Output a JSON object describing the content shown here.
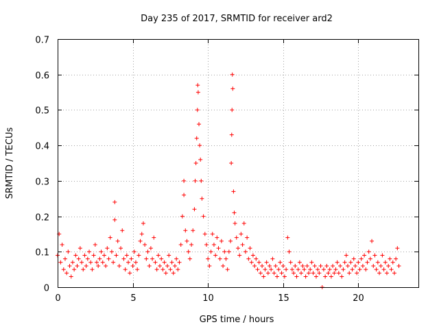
{
  "chart_data": {
    "type": "scatter",
    "title": "Day 235 of 2017, SRMTID for receiver ard2",
    "xlabel": "GPS time / hours",
    "ylabel": "SRMTID / TECUs",
    "xlim": [
      0,
      24
    ],
    "ylim": [
      0,
      0.7
    ],
    "xticks": [
      0,
      5,
      10,
      15,
      20
    ],
    "yticks": [
      0,
      0.1,
      0.2,
      0.3,
      0.4,
      0.5,
      0.6,
      0.7
    ],
    "ytick_labels": [
      "0",
      "0.1",
      "0.2",
      "0.3",
      "0.4",
      "0.5",
      "0.6",
      "0.7"
    ],
    "grid": true,
    "marker": "+",
    "color": "#ff0000",
    "series": [
      {
        "name": "SRMTID",
        "points": [
          [
            0.0,
            0.09
          ],
          [
            0.1,
            0.15
          ],
          [
            0.2,
            0.07
          ],
          [
            0.3,
            0.12
          ],
          [
            0.4,
            0.05
          ],
          [
            0.5,
            0.08
          ],
          [
            0.6,
            0.04
          ],
          [
            0.7,
            0.1
          ],
          [
            0.8,
            0.06
          ],
          [
            0.9,
            0.03
          ],
          [
            1.0,
            0.07
          ],
          [
            1.1,
            0.05
          ],
          [
            1.2,
            0.09
          ],
          [
            1.3,
            0.06
          ],
          [
            1.4,
            0.08
          ],
          [
            1.5,
            0.11
          ],
          [
            1.6,
            0.07
          ],
          [
            1.7,
            0.05
          ],
          [
            1.8,
            0.09
          ],
          [
            1.9,
            0.06
          ],
          [
            2.0,
            0.08
          ],
          [
            2.1,
            0.1
          ],
          [
            2.2,
            0.07
          ],
          [
            2.3,
            0.05
          ],
          [
            2.4,
            0.09
          ],
          [
            2.5,
            0.12
          ],
          [
            2.6,
            0.07
          ],
          [
            2.7,
            0.06
          ],
          [
            2.8,
            0.08
          ],
          [
            2.9,
            0.1
          ],
          [
            3.0,
            0.07
          ],
          [
            3.1,
            0.09
          ],
          [
            3.2,
            0.06
          ],
          [
            3.3,
            0.11
          ],
          [
            3.4,
            0.08
          ],
          [
            3.5,
            0.14
          ],
          [
            3.6,
            0.1
          ],
          [
            3.7,
            0.07
          ],
          [
            3.8,
            0.24
          ],
          [
            3.8,
            0.19
          ],
          [
            3.9,
            0.09
          ],
          [
            4.0,
            0.13
          ],
          [
            4.1,
            0.06
          ],
          [
            4.2,
            0.11
          ],
          [
            4.3,
            0.16
          ],
          [
            4.4,
            0.08
          ],
          [
            4.5,
            0.05
          ],
          [
            4.6,
            0.09
          ],
          [
            4.7,
            0.07
          ],
          [
            4.8,
            0.04
          ],
          [
            4.9,
            0.08
          ],
          [
            5.0,
            0.06
          ],
          [
            5.1,
            0.1
          ],
          [
            5.2,
            0.07
          ],
          [
            5.3,
            0.05
          ],
          [
            5.4,
            0.09
          ],
          [
            5.5,
            0.13
          ],
          [
            5.6,
            0.15
          ],
          [
            5.7,
            0.18
          ],
          [
            5.8,
            0.12
          ],
          [
            5.9,
            0.08
          ],
          [
            6.0,
            0.1
          ],
          [
            6.1,
            0.06
          ],
          [
            6.2,
            0.11
          ],
          [
            6.3,
            0.08
          ],
          [
            6.4,
            0.14
          ],
          [
            6.5,
            0.07
          ],
          [
            6.6,
            0.05
          ],
          [
            6.7,
            0.09
          ],
          [
            6.8,
            0.06
          ],
          [
            6.9,
            0.08
          ],
          [
            7.0,
            0.05
          ],
          [
            7.1,
            0.07
          ],
          [
            7.2,
            0.04
          ],
          [
            7.3,
            0.06
          ],
          [
            7.4,
            0.09
          ],
          [
            7.5,
            0.05
          ],
          [
            7.6,
            0.07
          ],
          [
            7.7,
            0.04
          ],
          [
            7.8,
            0.06
          ],
          [
            7.9,
            0.08
          ],
          [
            8.0,
            0.05
          ],
          [
            8.1,
            0.07
          ],
          [
            8.2,
            0.12
          ],
          [
            8.3,
            0.2
          ],
          [
            8.4,
            0.3
          ],
          [
            8.4,
            0.26
          ],
          [
            8.5,
            0.16
          ],
          [
            8.6,
            0.13
          ],
          [
            8.7,
            0.1
          ],
          [
            8.8,
            0.08
          ],
          [
            8.9,
            0.12
          ],
          [
            9.0,
            0.16
          ],
          [
            9.1,
            0.22
          ],
          [
            9.15,
            0.3
          ],
          [
            9.2,
            0.35
          ],
          [
            9.25,
            0.42
          ],
          [
            9.3,
            0.5
          ],
          [
            9.32,
            0.57
          ],
          [
            9.35,
            0.55
          ],
          [
            9.4,
            0.46
          ],
          [
            9.45,
            0.4
          ],
          [
            9.5,
            0.36
          ],
          [
            9.55,
            0.3
          ],
          [
            9.6,
            0.25
          ],
          [
            9.7,
            0.2
          ],
          [
            9.8,
            0.15
          ],
          [
            9.9,
            0.12
          ],
          [
            10.0,
            0.08
          ],
          [
            10.1,
            0.06
          ],
          [
            10.2,
            0.1
          ],
          [
            10.3,
            0.15
          ],
          [
            10.4,
            0.12
          ],
          [
            10.5,
            0.09
          ],
          [
            10.6,
            0.14
          ],
          [
            10.7,
            0.11
          ],
          [
            10.8,
            0.08
          ],
          [
            10.9,
            0.13
          ],
          [
            11.0,
            0.06
          ],
          [
            11.1,
            0.1
          ],
          [
            11.2,
            0.08
          ],
          [
            11.3,
            0.05
          ],
          [
            11.4,
            0.1
          ],
          [
            11.5,
            0.13
          ],
          [
            11.55,
            0.35
          ],
          [
            11.58,
            0.43
          ],
          [
            11.6,
            0.5
          ],
          [
            11.62,
            0.6
          ],
          [
            11.65,
            0.56
          ],
          [
            11.7,
            0.27
          ],
          [
            11.75,
            0.21
          ],
          [
            11.8,
            0.18
          ],
          [
            11.9,
            0.14
          ],
          [
            12.0,
            0.11
          ],
          [
            12.1,
            0.09
          ],
          [
            12.2,
            0.15
          ],
          [
            12.3,
            0.12
          ],
          [
            12.4,
            0.18
          ],
          [
            12.5,
            0.1
          ],
          [
            12.6,
            0.14
          ],
          [
            12.7,
            0.08
          ],
          [
            12.8,
            0.11
          ],
          [
            12.9,
            0.07
          ],
          [
            13.0,
            0.09
          ],
          [
            13.1,
            0.06
          ],
          [
            13.2,
            0.08
          ],
          [
            13.3,
            0.05
          ],
          [
            13.4,
            0.07
          ],
          [
            13.5,
            0.04
          ],
          [
            13.6,
            0.06
          ],
          [
            13.7,
            0.03
          ],
          [
            13.8,
            0.05
          ],
          [
            13.9,
            0.07
          ],
          [
            14.0,
            0.04
          ],
          [
            14.1,
            0.06
          ],
          [
            14.2,
            0.05
          ],
          [
            14.3,
            0.08
          ],
          [
            14.4,
            0.04
          ],
          [
            14.5,
            0.06
          ],
          [
            14.6,
            0.03
          ],
          [
            14.7,
            0.05
          ],
          [
            14.8,
            0.07
          ],
          [
            14.9,
            0.04
          ],
          [
            15.0,
            0.06
          ],
          [
            15.1,
            0.03
          ],
          [
            15.2,
            0.05
          ],
          [
            15.3,
            0.14
          ],
          [
            15.4,
            0.1
          ],
          [
            15.5,
            0.07
          ],
          [
            15.6,
            0.05
          ],
          [
            15.7,
            0.04
          ],
          [
            15.8,
            0.06
          ],
          [
            15.9,
            0.03
          ],
          [
            16.0,
            0.05
          ],
          [
            16.1,
            0.07
          ],
          [
            16.2,
            0.04
          ],
          [
            16.3,
            0.06
          ],
          [
            16.4,
            0.05
          ],
          [
            16.5,
            0.03
          ],
          [
            16.6,
            0.06
          ],
          [
            16.7,
            0.04
          ],
          [
            16.8,
            0.05
          ],
          [
            16.9,
            0.07
          ],
          [
            17.0,
            0.04
          ],
          [
            17.1,
            0.06
          ],
          [
            17.2,
            0.03
          ],
          [
            17.3,
            0.05
          ],
          [
            17.4,
            0.04
          ],
          [
            17.5,
            0.06
          ],
          [
            17.6,
            0.0
          ],
          [
            17.7,
            0.05
          ],
          [
            17.8,
            0.03
          ],
          [
            17.9,
            0.06
          ],
          [
            18.0,
            0.04
          ],
          [
            18.1,
            0.05
          ],
          [
            18.2,
            0.03
          ],
          [
            18.3,
            0.06
          ],
          [
            18.4,
            0.04
          ],
          [
            18.5,
            0.05
          ],
          [
            18.6,
            0.07
          ],
          [
            18.7,
            0.04
          ],
          [
            18.8,
            0.06
          ],
          [
            18.9,
            0.03
          ],
          [
            19.0,
            0.05
          ],
          [
            19.1,
            0.07
          ],
          [
            19.2,
            0.09
          ],
          [
            19.3,
            0.06
          ],
          [
            19.4,
            0.04
          ],
          [
            19.5,
            0.07
          ],
          [
            19.6,
            0.05
          ],
          [
            19.7,
            0.08
          ],
          [
            19.8,
            0.06
          ],
          [
            19.9,
            0.04
          ],
          [
            20.0,
            0.07
          ],
          [
            20.1,
            0.05
          ],
          [
            20.2,
            0.08
          ],
          [
            20.3,
            0.06
          ],
          [
            20.4,
            0.09
          ],
          [
            20.5,
            0.05
          ],
          [
            20.6,
            0.07
          ],
          [
            20.7,
            0.1
          ],
          [
            20.8,
            0.08
          ],
          [
            20.9,
            0.13
          ],
          [
            21.0,
            0.06
          ],
          [
            21.1,
            0.09
          ],
          [
            21.2,
            0.05
          ],
          [
            21.3,
            0.07
          ],
          [
            21.4,
            0.04
          ],
          [
            21.5,
            0.06
          ],
          [
            21.6,
            0.09
          ],
          [
            21.7,
            0.05
          ],
          [
            21.8,
            0.07
          ],
          [
            21.9,
            0.04
          ],
          [
            22.0,
            0.06
          ],
          [
            22.1,
            0.08
          ],
          [
            22.2,
            0.05
          ],
          [
            22.3,
            0.07
          ],
          [
            22.4,
            0.04
          ],
          [
            22.5,
            0.08
          ],
          [
            22.6,
            0.11
          ],
          [
            22.7,
            0.06
          ]
        ]
      }
    ]
  }
}
